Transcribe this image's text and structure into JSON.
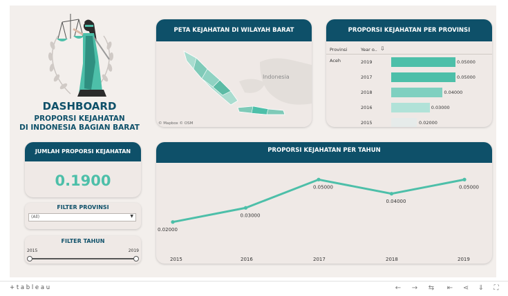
{
  "dashboard": {
    "title": "DASHBOARD",
    "subtitle_line1": "PROPORSI KEJAHATAN",
    "subtitle_line2": "DI INDONESIA BAGIAN BARAT"
  },
  "map_card": {
    "title": "PETA KEJAHATAN DI WILAYAH BARAT",
    "country_label": "Indonesia",
    "attribution": "© Mapbox  © OSM"
  },
  "province_card": {
    "title": "PROPORSI KEJAHATAN PER PROVINSI",
    "col_province": "Provinsi",
    "col_year": "Year o..",
    "province": "Aceh",
    "rows": [
      {
        "year": "2019",
        "value": 0.05,
        "label": "0.05000"
      },
      {
        "year": "2017",
        "value": 0.05,
        "label": "0.05000"
      },
      {
        "year": "2018",
        "value": 0.04,
        "label": "0.04000"
      },
      {
        "year": "2016",
        "value": 0.03,
        "label": "0.03000"
      },
      {
        "year": "2015",
        "value": 0.02,
        "label": "0.02000"
      }
    ],
    "bar_colors": [
      "#4dbfa9",
      "#4dbfa9",
      "#7fd0c0",
      "#b1e2d8",
      "#e6ebea"
    ]
  },
  "kpi_card": {
    "title": "JUMLAH PROPORSI KEJAHATAN",
    "value": "0.1900"
  },
  "filter_province": {
    "title": "FILTER PROVINSI",
    "selected": "(All)"
  },
  "filter_year": {
    "title": "FILTER TAHUN",
    "min_label": "2015",
    "max_label": "2019"
  },
  "line_card": {
    "title": "PROPORSI KEJAHATAN PER TAHUN"
  },
  "chart_data": {
    "type": "line",
    "title": "PROPORSI KEJAHATAN PER TAHUN",
    "x": [
      "2015",
      "2016",
      "2017",
      "2018",
      "2019"
    ],
    "series": [
      {
        "values": [
          0.02,
          0.03,
          0.05,
          0.04,
          0.05
        ],
        "labels": [
          "0.02000",
          "0.03000",
          "0.05000",
          "0.04000",
          "0.05000"
        ]
      }
    ],
    "ylim": [
      0.015,
      0.055
    ],
    "color": "#4dbfa9",
    "grid": false
  },
  "footer": {
    "brand": "+ t a b l e a u"
  },
  "colors": {
    "accent": "#4dbfa9",
    "header": "#0e5069",
    "panel": "#efe9e6"
  }
}
